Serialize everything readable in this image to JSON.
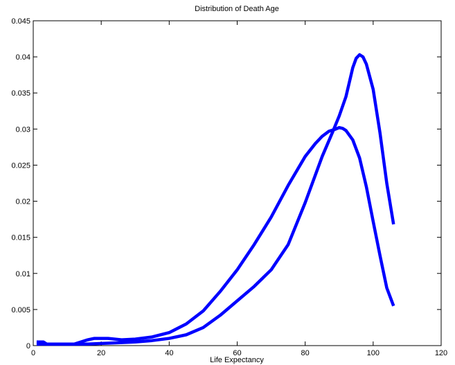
{
  "chart_data": {
    "type": "line",
    "title": "Distribution of Death Age",
    "xlabel": "Life Expectancy",
    "ylabel": "",
    "xlim": [
      0,
      120
    ],
    "ylim": [
      0,
      0.045
    ],
    "xticks": [
      0,
      20,
      40,
      60,
      80,
      100,
      120
    ],
    "yticks": [
      0,
      0.005,
      0.01,
      0.015,
      0.02,
      0.025,
      0.03,
      0.035,
      0.04,
      0.045
    ],
    "xtick_labels": [
      "0",
      "20",
      "40",
      "60",
      "80",
      "100",
      "120"
    ],
    "ytick_labels": [
      "0",
      "0.005",
      "0.01",
      "0.015",
      "0.02",
      "0.025",
      "0.03",
      "0.035",
      "0.04",
      "0.045"
    ],
    "grid": false,
    "legend": "none",
    "line_color": "#0000ff",
    "series": [
      {
        "x": [
          1,
          3,
          4,
          8,
          12,
          14,
          16,
          18,
          20,
          22,
          24,
          26,
          30,
          35,
          40,
          45,
          50,
          55,
          60,
          65,
          70,
          75,
          80,
          83,
          85,
          87,
          89,
          90,
          91,
          92,
          94,
          96,
          98,
          100,
          102,
          104,
          106
        ],
        "y": [
          0.0005,
          0.0005,
          0.0002,
          0.0002,
          0.0002,
          0.0005,
          0.0008,
          0.001,
          0.001,
          0.001,
          0.0009,
          0.0008,
          0.0009,
          0.0012,
          0.0018,
          0.003,
          0.0048,
          0.0075,
          0.0105,
          0.014,
          0.0178,
          0.0222,
          0.0262,
          0.028,
          0.029,
          0.0297,
          0.03,
          0.0302,
          0.0301,
          0.0298,
          0.0285,
          0.026,
          0.022,
          0.0172,
          0.0125,
          0.008,
          0.0055
        ]
      },
      {
        "x": [
          1,
          5,
          10,
          15,
          20,
          25,
          30,
          35,
          40,
          45,
          50,
          55,
          60,
          65,
          70,
          75,
          80,
          85,
          88,
          90,
          92,
          93,
          94,
          95,
          96,
          97,
          98,
          100,
          102,
          104,
          106
        ],
        "y": [
          0.0002,
          0.0002,
          0.0002,
          0.0002,
          0.0003,
          0.0004,
          0.0005,
          0.0007,
          0.001,
          0.0015,
          0.0025,
          0.0042,
          0.0062,
          0.0082,
          0.0105,
          0.014,
          0.0198,
          0.0262,
          0.0295,
          0.0318,
          0.0345,
          0.0365,
          0.0385,
          0.0398,
          0.0403,
          0.04,
          0.039,
          0.0355,
          0.0295,
          0.0225,
          0.0168
        ]
      }
    ]
  }
}
